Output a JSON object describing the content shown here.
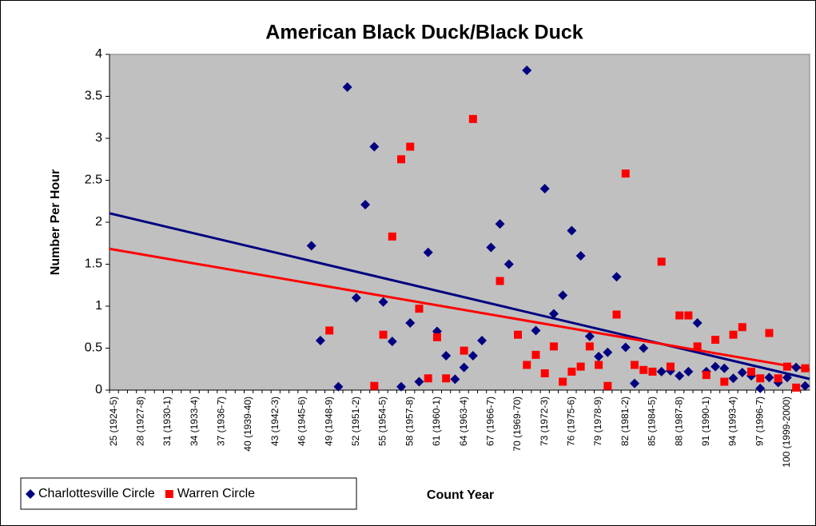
{
  "chart_data": {
    "type": "scatter",
    "title": "American Black Duck/Black Duck",
    "x_label": "Count Year",
    "y_label": "Number Per Hour",
    "categories": [
      "25 (1924-5)",
      null,
      null,
      "28 (1927-8)",
      null,
      null,
      "31 (1930-1)",
      null,
      null,
      "34 (1933-4)",
      null,
      null,
      "37 (1936-7)",
      null,
      null,
      "40 (1939-40)",
      null,
      null,
      "43 (1942-3)",
      null,
      null,
      "46 (1945-6)",
      null,
      null,
      "49 (1948-9)",
      null,
      null,
      "52 (1951-2)",
      null,
      null,
      "55 (1954-5)",
      null,
      null,
      "58 (1957-8)",
      null,
      null,
      "61 (1960-1)",
      null,
      null,
      "64 (1963-4)",
      null,
      null,
      "67 (1966-7)",
      null,
      null,
      "70 (1969-70)",
      null,
      null,
      "73 (1972-3)",
      null,
      null,
      "76 (1975-6)",
      null,
      null,
      "79 (1978-9)",
      null,
      null,
      "82 (1981-2)",
      null,
      null,
      "85 (1984-5)",
      null,
      null,
      "88 (1987-8)",
      null,
      null,
      "91 (1990-1)",
      null,
      null,
      "94 (1993-4)",
      null,
      null,
      "97 (1996-7)",
      null,
      null,
      "100 (1999-2000)",
      null,
      null
    ],
    "series": [
      {
        "name": "Charlottesville Circle",
        "color": "#000080",
        "marker": "diamond",
        "values": [
          null,
          null,
          null,
          null,
          null,
          null,
          null,
          null,
          null,
          null,
          null,
          null,
          null,
          null,
          null,
          null,
          null,
          null,
          null,
          null,
          null,
          null,
          1.72,
          0.59,
          null,
          0.04,
          3.61,
          1.1,
          2.21,
          2.9,
          1.05,
          0.58,
          0.04,
          0.8,
          0.1,
          1.64,
          0.7,
          0.41,
          0.13,
          0.27,
          0.41,
          0.59,
          1.7,
          1.98,
          1.5,
          null,
          3.81,
          0.71,
          2.4,
          0.91,
          1.13,
          1.9,
          1.6,
          0.64,
          0.4,
          0.45,
          1.35,
          0.51,
          0.08,
          0.5,
          null,
          0.22,
          0.23,
          0.17,
          0.22,
          0.8,
          0.22,
          0.28,
          0.26,
          0.14,
          0.21,
          0.17,
          0.02,
          0.15,
          0.09,
          0.15,
          0.27,
          0.05
        ]
      },
      {
        "name": "Warren Circle",
        "color": "#ff0000",
        "marker": "square",
        "values": [
          null,
          null,
          null,
          null,
          null,
          null,
          null,
          null,
          null,
          null,
          null,
          null,
          null,
          null,
          null,
          null,
          null,
          null,
          null,
          null,
          null,
          null,
          null,
          null,
          0.71,
          null,
          null,
          null,
          null,
          0.05,
          0.66,
          1.83,
          2.75,
          2.9,
          0.97,
          0.14,
          0.63,
          0.14,
          null,
          0.47,
          3.23,
          null,
          null,
          1.3,
          null,
          0.66,
          0.3,
          0.42,
          0.2,
          0.52,
          0.1,
          0.22,
          0.28,
          0.52,
          0.3,
          0.05,
          0.9,
          2.58,
          0.3,
          0.24,
          0.22,
          1.53,
          0.28,
          0.89,
          0.89,
          0.52,
          0.18,
          0.6,
          0.1,
          0.66,
          0.75,
          0.22,
          0.14,
          0.68,
          0.14,
          0.28,
          0.03,
          0.26
        ]
      }
    ],
    "trendline": true,
    "ylim": [
      0,
      4
    ],
    "yticks": [
      0,
      0.5,
      1,
      1.5,
      2,
      2.5,
      3,
      3.5,
      4
    ],
    "grid": false,
    "legend": "bottom-left"
  }
}
